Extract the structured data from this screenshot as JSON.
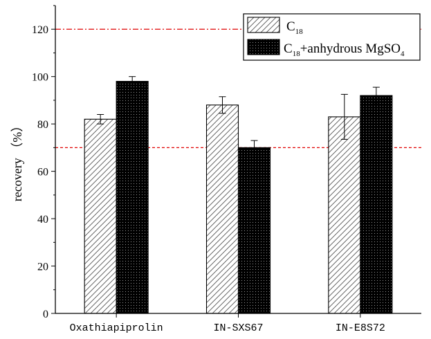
{
  "chart_data": {
    "type": "bar",
    "categories": [
      "Oxathiapiprolin",
      "IN-SXS67",
      "IN-E8S72"
    ],
    "series": [
      {
        "name": "C18",
        "name_base": "C",
        "name_sub": "18",
        "values": [
          82,
          88,
          83
        ],
        "errors": [
          2,
          3.5,
          9.5
        ],
        "pattern": "diagonal-hatch",
        "color": "#ffffff"
      },
      {
        "name": "C18+anhydrous MgSO4",
        "name_base": "C",
        "name_sub": "18",
        "name_mid": "+anhydrous MgSO",
        "name_sub2": "4",
        "values": [
          98,
          70,
          92
        ],
        "errors": [
          2,
          3,
          3.5
        ],
        "pattern": "dotted-black",
        "color": "#000000"
      }
    ],
    "ylabel": "recovery （%）",
    "xlabel": "",
    "ylim": [
      0,
      130
    ],
    "yticks": [
      0,
      20,
      40,
      60,
      80,
      100,
      120
    ],
    "reference_lines": [
      {
        "y": 120,
        "style": "dash-dot",
        "color": "#e00000"
      },
      {
        "y": 70,
        "style": "dashed",
        "color": "#e00000"
      }
    ],
    "legend_position": "top-right",
    "grid": false
  }
}
